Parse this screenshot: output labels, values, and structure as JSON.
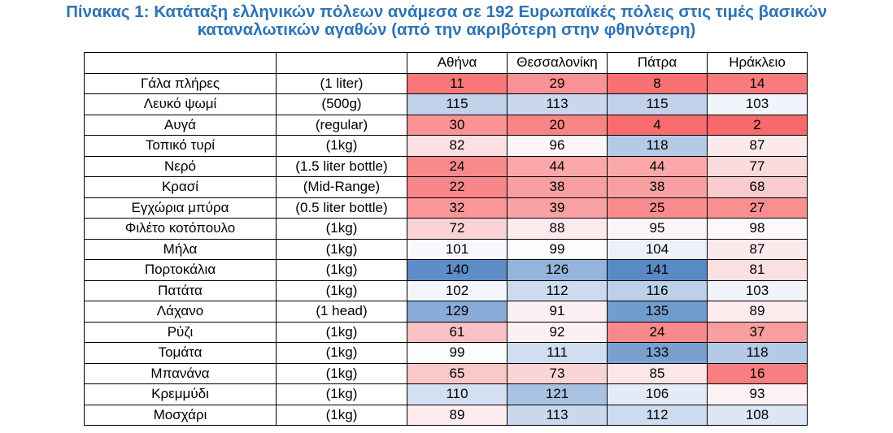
{
  "title": {
    "line1": "Πίνακας 1: Κατάταξη ελληνικών πόλεων ανάμεσα σε 192 Ευρωπαϊκές πόλεις στις τιμές βασικών",
    "line2": "καταναλωτικών αγαθών (από την ακριβότερη στην φθηνότερη)"
  },
  "table": {
    "columns": [
      "",
      "",
      "Αθήνα",
      "Θεσσαλονίκη",
      "Πάτρα",
      "Ηράκλειο"
    ],
    "rows": [
      {
        "item": "Γάλα πλήρες",
        "unit": "(1 liter)",
        "values": [
          11,
          29,
          8,
          14
        ]
      },
      {
        "item": "Λευκό ψωμί",
        "unit": "(500g)",
        "values": [
          115,
          113,
          115,
          103
        ]
      },
      {
        "item": "Αυγά",
        "unit": "(regular)",
        "values": [
          30,
          20,
          4,
          2
        ]
      },
      {
        "item": "Τοπικό τυρί",
        "unit": "(1kg)",
        "values": [
          82,
          96,
          118,
          87
        ]
      },
      {
        "item": "Νερό",
        "unit": "(1.5 liter bottle)",
        "values": [
          24,
          44,
          44,
          77
        ]
      },
      {
        "item": "Κρασί",
        "unit": "(Mid-Range)",
        "values": [
          22,
          38,
          38,
          68
        ]
      },
      {
        "item": "Εγχώρια μπύρα",
        "unit": "(0.5 liter bottle)",
        "values": [
          32,
          39,
          25,
          27
        ]
      },
      {
        "item": "Φιλέτο κοτόπουλο",
        "unit": "(1kg)",
        "values": [
          72,
          88,
          95,
          98
        ]
      },
      {
        "item": "Μήλα",
        "unit": "(1kg)",
        "values": [
          101,
          99,
          104,
          87
        ]
      },
      {
        "item": "Πορτοκάλια",
        "unit": "(1kg)",
        "values": [
          140,
          126,
          141,
          81
        ]
      },
      {
        "item": "Πατάτα",
        "unit": "(1kg)",
        "values": [
          102,
          112,
          116,
          103
        ]
      },
      {
        "item": "Λάχανο",
        "unit": "(1 head)",
        "values": [
          129,
          91,
          135,
          89
        ]
      },
      {
        "item": "Ρύζι",
        "unit": "(1kg)",
        "values": [
          61,
          92,
          24,
          37
        ]
      },
      {
        "item": "Τομάτα",
        "unit": "(1kg)",
        "values": [
          99,
          111,
          133,
          118
        ]
      },
      {
        "item": "Μπανάνα",
        "unit": "(1kg)",
        "values": [
          65,
          73,
          85,
          16
        ]
      },
      {
        "item": "Κρεμμύδι",
        "unit": "(1kg)",
        "values": [
          110,
          121,
          106,
          93
        ]
      },
      {
        "item": "Μοσχάρι",
        "unit": "(1kg)",
        "values": [
          89,
          113,
          112,
          108
        ]
      }
    ]
  },
  "colors": {
    "title": "#2e74b5",
    "low": "#f8696b",
    "mid": "#fcfcff",
    "high": "#5a8ac6"
  }
}
